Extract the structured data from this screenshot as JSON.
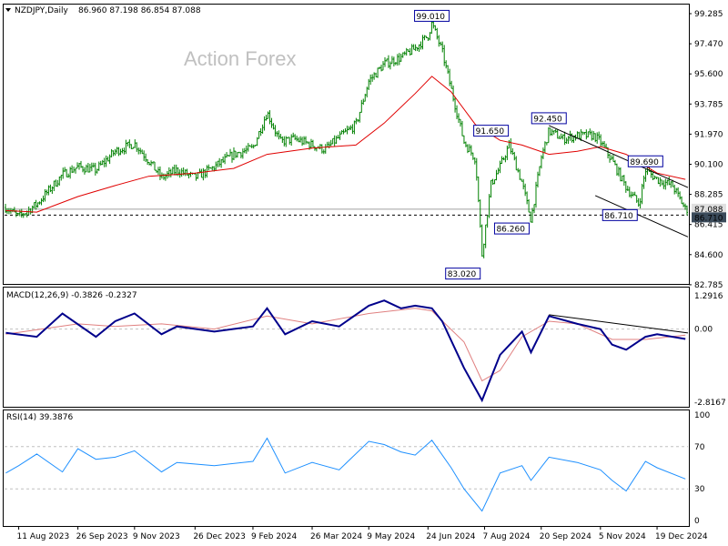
{
  "header": {
    "symbol": "NZDJPY,Daily",
    "ohlc": "86.960 87.198 86.854 87.088"
  },
  "watermark": "Action Forex",
  "colors": {
    "candle": "#008000",
    "ma": "#e00000",
    "macd": "#00008b",
    "signal": "#e08080",
    "rsi": "#1e90ff",
    "trend": "#000000",
    "grid": "#c0c0c0"
  },
  "chart_data": [
    {
      "type": "candlestick",
      "title": "NZDJPY,Daily 86.960 87.198 86.854 87.088",
      "y_ticks": [
        "99.285",
        "97.470",
        "95.600",
        "93.785",
        "91.970",
        "90.100",
        "88.285",
        "86.415",
        "84.600",
        "82.785"
      ],
      "ylim": [
        82.3,
        100.2
      ],
      "current_price": "87.088",
      "support_line_label": "86.710",
      "x_tick_labels": [
        "11 Aug 2023",
        "26 Sep 2023",
        "9 Nov 2023",
        "26 Dec 2023",
        "9 Feb 2024",
        "26 Mar 2024",
        "9 May 2024",
        "24 Jun 2024",
        "7 Aug 2024",
        "20 Sep 2024",
        "5 Nov 2024",
        "19 Dec 2024"
      ],
      "annotations": [
        {
          "text": "99.010",
          "x": "2024-06-27",
          "y": 99.01
        },
        {
          "text": "91.650",
          "x": "2024-08-12",
          "y": 91.65
        },
        {
          "text": "92.450",
          "x": "2024-09-26",
          "y": 92.45
        },
        {
          "text": "89.690",
          "x": "2024-12-10",
          "y": 89.69
        },
        {
          "text": "86.260",
          "x": "2024-09-12",
          "y": 86.26
        },
        {
          "text": "86.710",
          "x": "2024-12-05",
          "y": 86.71
        },
        {
          "text": "83.020",
          "x": "2024-08-05",
          "y": 83.02
        }
      ],
      "close_path": {
        "x": [
          "2023-08-01",
          "2023-08-11",
          "2023-08-25",
          "2023-09-14",
          "2023-09-26",
          "2023-10-10",
          "2023-10-25",
          "2023-11-09",
          "2023-11-20",
          "2023-11-30",
          "2023-12-12",
          "2023-12-26",
          "2024-01-10",
          "2024-01-25",
          "2024-02-09",
          "2024-02-20",
          "2024-03-01",
          "2024-03-12",
          "2024-03-26",
          "2024-04-05",
          "2024-04-16",
          "2024-04-29",
          "2024-05-09",
          "2024-05-21",
          "2024-06-03",
          "2024-06-14",
          "2024-06-24",
          "2024-06-27",
          "2024-07-05",
          "2024-07-12",
          "2024-07-22",
          "2024-07-31",
          "2024-08-05",
          "2024-08-12",
          "2024-08-19",
          "2024-08-26",
          "2024-09-05",
          "2024-09-12",
          "2024-09-20",
          "2024-09-26",
          "2024-10-07",
          "2024-10-18",
          "2024-10-31",
          "2024-11-05",
          "2024-11-14",
          "2024-11-25",
          "2024-12-05",
          "2024-12-10",
          "2024-12-19",
          "2024-12-31",
          "2025-01-10"
        ],
        "y": [
          87.2,
          86.6,
          87.4,
          89.3,
          89.8,
          89.6,
          90.8,
          91.3,
          90.2,
          89.1,
          89.6,
          89.1,
          89.8,
          90.6,
          91.0,
          93.3,
          91.4,
          91.6,
          91.2,
          90.9,
          91.7,
          92.5,
          95.3,
          96.4,
          96.8,
          97.4,
          98.2,
          99.0,
          97.2,
          94.8,
          91.4,
          90.3,
          84.2,
          88.7,
          89.8,
          91.2,
          88.8,
          86.4,
          90.4,
          92.1,
          91.6,
          91.8,
          91.8,
          91.4,
          90.2,
          88.5,
          87.4,
          89.6,
          89.0,
          88.6,
          87.09
        ]
      },
      "ma_path": {
        "x": [
          "2023-08-01",
          "2023-08-25",
          "2023-09-26",
          "2023-10-25",
          "2023-11-20",
          "2023-12-26",
          "2024-01-25",
          "2024-02-20",
          "2024-03-26",
          "2024-04-29",
          "2024-05-21",
          "2024-06-14",
          "2024-06-27",
          "2024-07-12",
          "2024-07-31",
          "2024-08-19",
          "2024-09-05",
          "2024-09-26",
          "2024-10-18",
          "2024-11-05",
          "2024-11-25",
          "2024-12-19",
          "2025-01-10"
        ],
        "y": [
          87.0,
          86.9,
          87.9,
          88.6,
          89.2,
          89.4,
          89.7,
          90.6,
          91.0,
          91.2,
          92.6,
          94.5,
          95.6,
          94.6,
          92.5,
          91.5,
          91.2,
          90.6,
          90.8,
          91.1,
          90.6,
          89.4,
          89.0
        ]
      }
    },
    {
      "type": "line",
      "title": "MACD(12,26,9) -0.3826 -0.2327",
      "y_ticks": [
        "1.2916",
        "0.00",
        "-2.8167"
      ],
      "ylim": [
        -3.0,
        1.6
      ],
      "series": [
        {
          "name": "MACD(12,26,9)",
          "last": -0.3826,
          "x": [
            "2023-08-01",
            "2023-08-25",
            "2023-09-14",
            "2023-10-10",
            "2023-10-25",
            "2023-11-09",
            "2023-11-30",
            "2023-12-12",
            "2024-01-10",
            "2024-02-09",
            "2024-02-20",
            "2024-03-05",
            "2024-03-26",
            "2024-04-16",
            "2024-05-09",
            "2024-05-21",
            "2024-06-03",
            "2024-06-14",
            "2024-06-27",
            "2024-07-05",
            "2024-07-22",
            "2024-08-05",
            "2024-08-19",
            "2024-09-05",
            "2024-09-12",
            "2024-09-26",
            "2024-10-18",
            "2024-11-05",
            "2024-11-14",
            "2024-11-25",
            "2024-12-10",
            "2024-12-19",
            "2025-01-10"
          ],
          "y": [
            -0.15,
            -0.3,
            0.6,
            -0.3,
            0.3,
            0.6,
            -0.2,
            0.1,
            -0.1,
            0.1,
            0.8,
            -0.2,
            0.3,
            0.1,
            0.9,
            1.1,
            0.8,
            0.9,
            0.8,
            0.3,
            -1.5,
            -2.75,
            -1.0,
            -0.1,
            -0.9,
            0.5,
            0.2,
            0.0,
            -0.6,
            -0.8,
            -0.3,
            -0.2,
            -0.3826
          ]
        },
        {
          "name": "Signal",
          "last": -0.2327,
          "x": [
            "2023-08-01",
            "2023-09-26",
            "2023-10-25",
            "2023-11-30",
            "2024-01-10",
            "2024-02-20",
            "2024-03-26",
            "2024-05-09",
            "2024-06-14",
            "2024-06-27",
            "2024-07-22",
            "2024-08-05",
            "2024-08-19",
            "2024-09-05",
            "2024-09-26",
            "2024-10-18",
            "2024-11-14",
            "2024-12-10",
            "2025-01-10"
          ],
          "y": [
            -0.2,
            0.2,
            0.1,
            0.2,
            0.0,
            0.5,
            0.2,
            0.6,
            0.8,
            0.7,
            -0.5,
            -2.0,
            -1.6,
            -0.3,
            0.3,
            0.2,
            -0.4,
            -0.4,
            -0.2327
          ]
        }
      ]
    },
    {
      "type": "line",
      "title": "RSI(14) 39.3876",
      "y_ticks": [
        "100",
        "70",
        "30",
        "0"
      ],
      "ylim": [
        0,
        100
      ],
      "levels": [
        70,
        30
      ],
      "series": [
        {
          "name": "RSI(14)",
          "last": 39.3876,
          "x": [
            "2023-08-01",
            "2023-08-11",
            "2023-08-25",
            "2023-09-14",
            "2023-09-26",
            "2023-10-10",
            "2023-10-25",
            "2023-11-09",
            "2023-11-30",
            "2023-12-12",
            "2024-01-10",
            "2024-02-09",
            "2024-02-20",
            "2024-03-05",
            "2024-03-26",
            "2024-04-16",
            "2024-05-09",
            "2024-05-21",
            "2024-06-03",
            "2024-06-14",
            "2024-06-27",
            "2024-07-12",
            "2024-07-22",
            "2024-08-05",
            "2024-08-19",
            "2024-09-05",
            "2024-09-12",
            "2024-09-26",
            "2024-10-18",
            "2024-11-05",
            "2024-11-14",
            "2024-11-25",
            "2024-12-10",
            "2024-12-19",
            "2025-01-10"
          ],
          "y": [
            45,
            52,
            63,
            46,
            68,
            58,
            60,
            66,
            46,
            55,
            52,
            56,
            78,
            45,
            55,
            48,
            75,
            72,
            65,
            62,
            76,
            50,
            30,
            9,
            45,
            52,
            38,
            60,
            55,
            48,
            38,
            28,
            56,
            50,
            39.3876
          ]
        }
      ]
    }
  ]
}
